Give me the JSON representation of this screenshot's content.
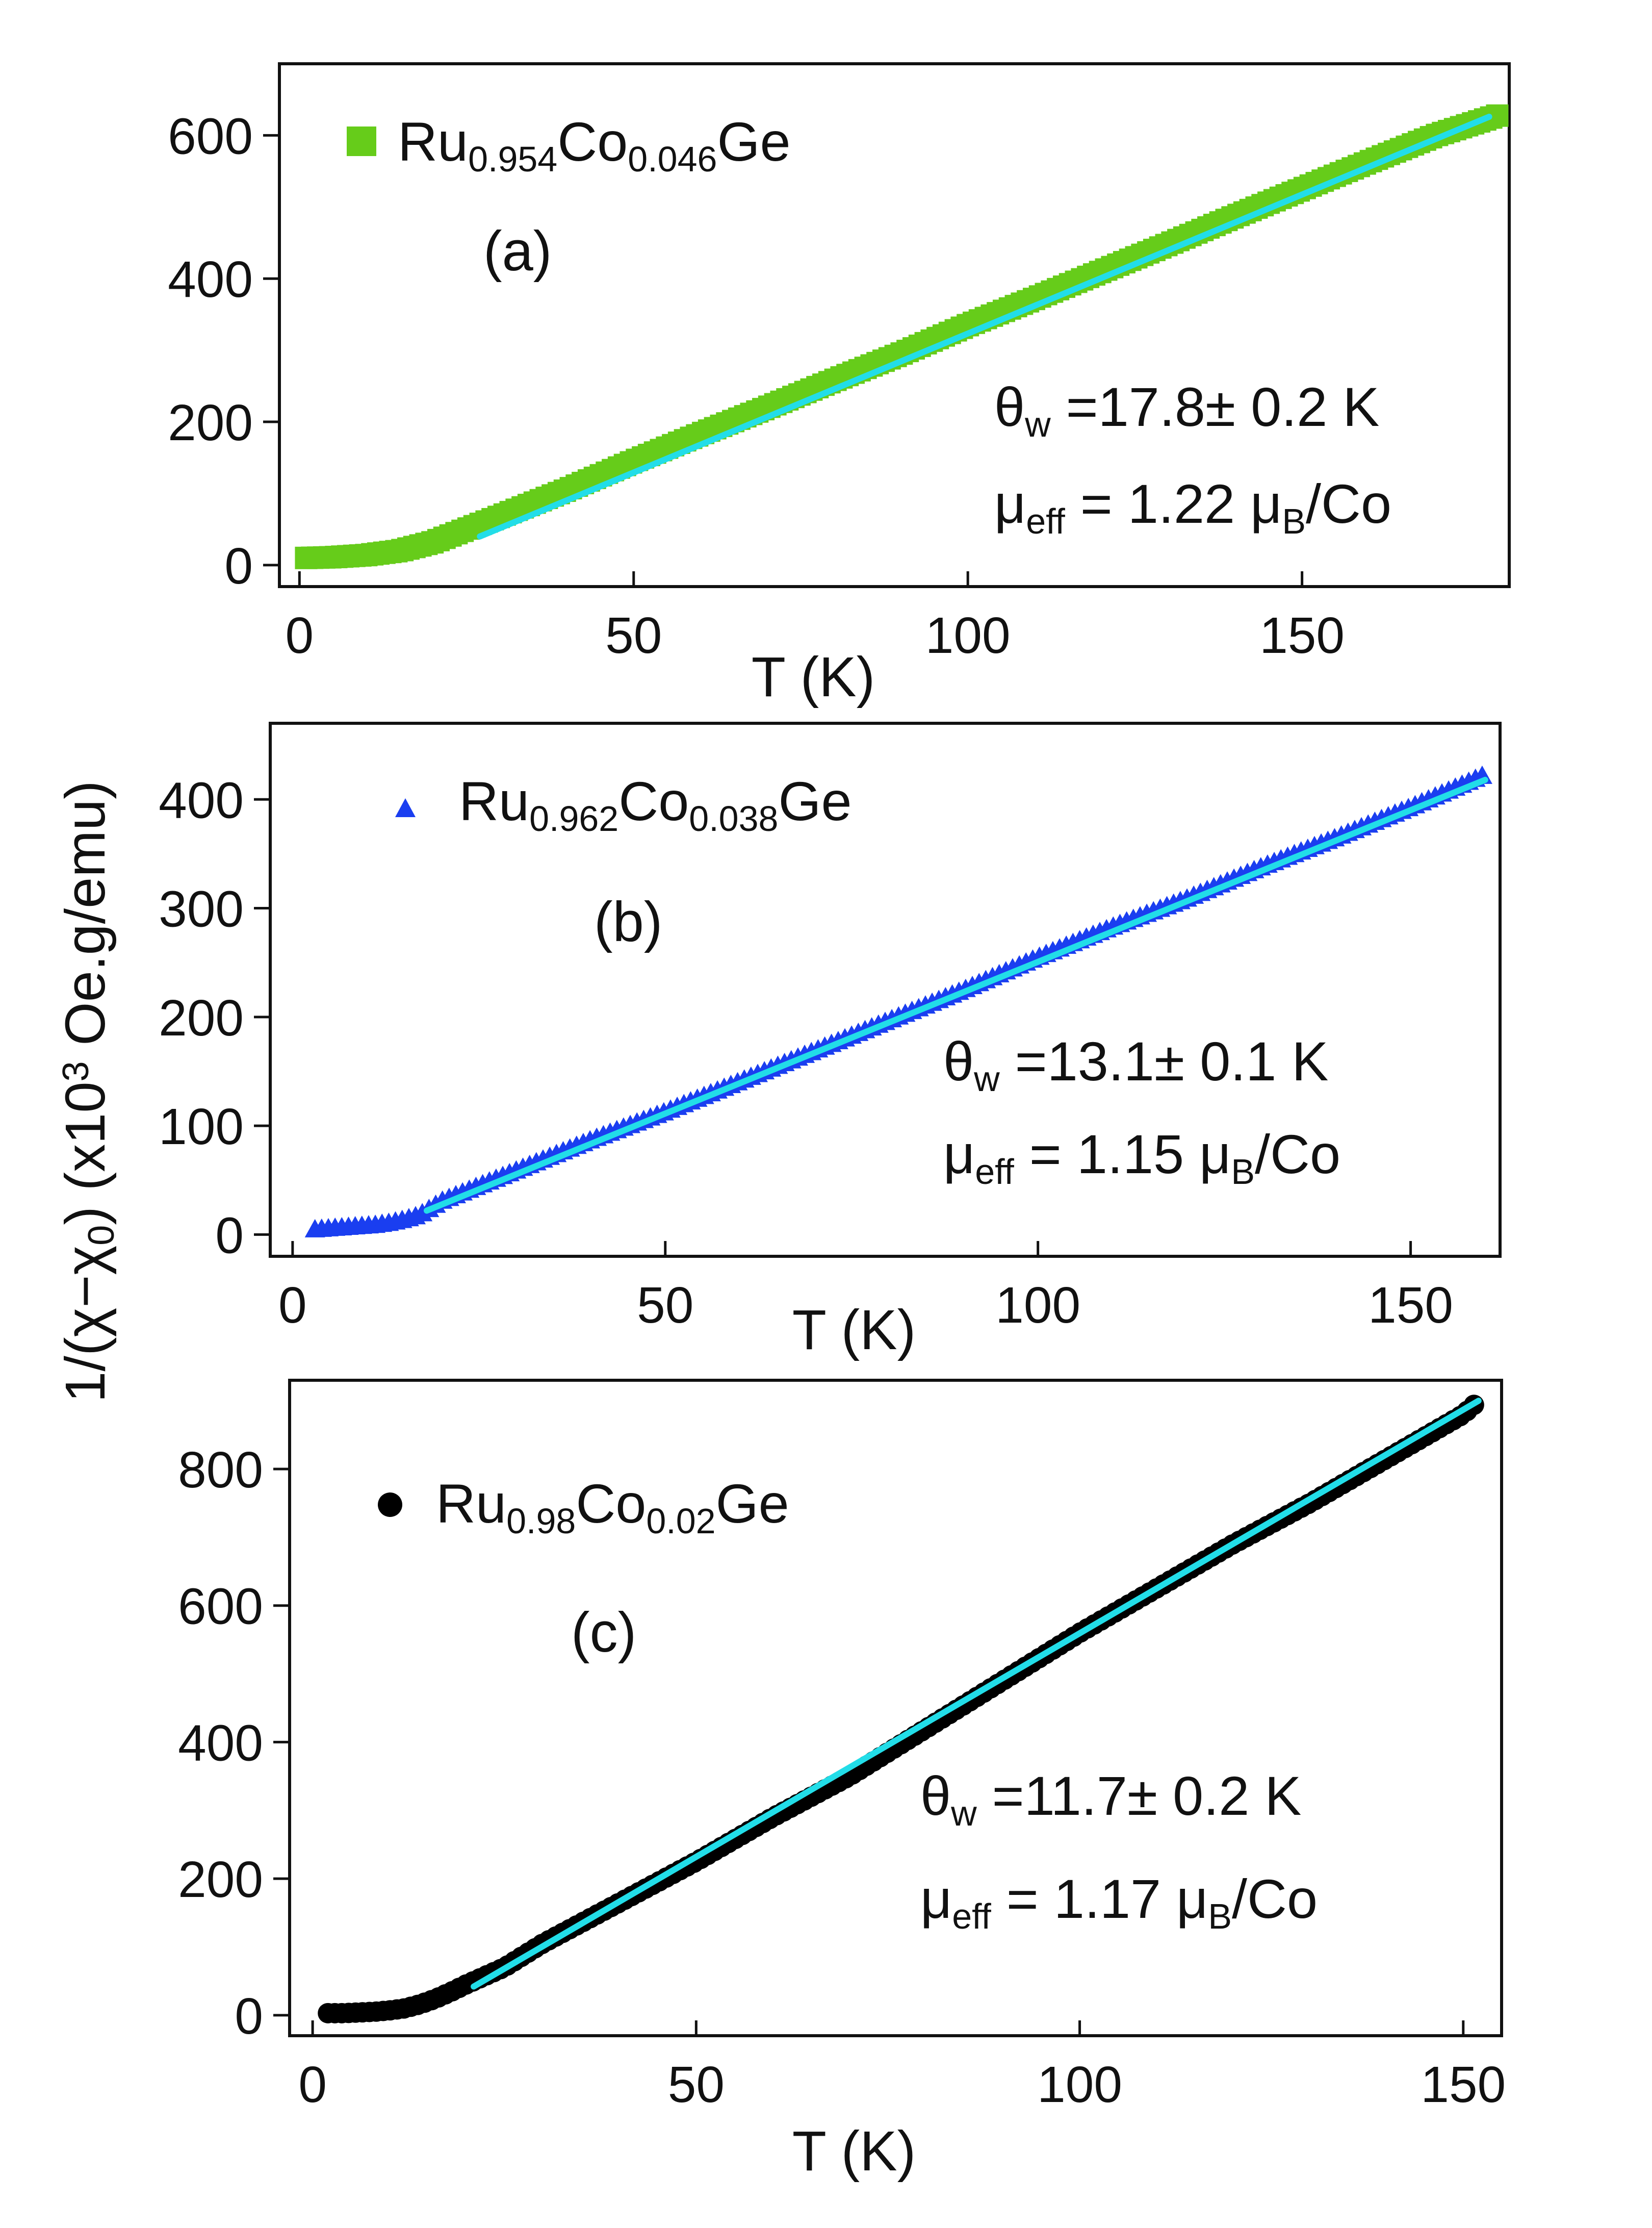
{
  "figure": {
    "ylabel_main": "1/(χ−χ",
    "ylabel_sub": "0",
    "ylabel_rest": ") (x10",
    "ylabel_sup": "3",
    "ylabel_unit": " Oe.g/emu)"
  },
  "colors": {
    "panel_a_marker": "#66cc1a",
    "panel_b_marker": "#1a3ef0",
    "panel_c_marker": "#000000",
    "fit_line": "#22dde8"
  },
  "chart_data": [
    {
      "type": "scatter",
      "panel": "(a)",
      "marker": "square",
      "legend": {
        "pre": "Ru",
        "sub1": "0.954",
        "mid": "Co",
        "sub2": "0.046",
        "post": "Ge"
      },
      "xlabel": "T (K)",
      "xlim": [
        -3,
        181
      ],
      "ylim": [
        -30,
        700
      ],
      "xticks": [
        0,
        50,
        100,
        150
      ],
      "yticks": [
        0,
        200,
        400,
        600
      ],
      "annotation": {
        "theta_sym": "θ",
        "theta_sub": "w",
        "theta_val": " =17.8± 0.2 K",
        "mu_sym": "μ",
        "mu_sub": "eff",
        "mu_mid": " = 1.22 μ",
        "mu_sub2": "B",
        "mu_post": "/Co"
      },
      "series": [
        {
          "name": "data",
          "x": [
            1,
            5,
            10,
            15,
            20,
            25,
            30,
            40,
            50,
            60,
            70,
            80,
            90,
            100,
            110,
            120,
            130,
            140,
            150,
            160,
            170,
            180
          ],
          "y": [
            10,
            11,
            14,
            20,
            32,
            50,
            68,
            105,
            145,
            183,
            220,
            258,
            295,
            335,
            372,
            410,
            448,
            487,
            525,
            563,
            600,
            630
          ]
        },
        {
          "name": "fit",
          "x": [
            27,
            178
          ],
          "y": [
            40,
            626
          ]
        }
      ]
    },
    {
      "type": "scatter",
      "panel": "(b)",
      "marker": "triangle",
      "legend": {
        "pre": "Ru",
        "sub1": "0.962",
        "mid": "Co",
        "sub2": "0.038",
        "post": "Ge"
      },
      "xlabel": "T (K)",
      "xlim": [
        -3,
        162
      ],
      "ylim": [
        -20,
        470
      ],
      "xticks": [
        0,
        50,
        100,
        150
      ],
      "yticks": [
        0,
        100,
        200,
        300,
        400
      ],
      "annotation": {
        "theta_sym": "θ",
        "theta_sub": "w",
        "theta_val": " =13.1± 0.1 K",
        "mu_sym": "μ",
        "mu_sub": "eff",
        "mu_mid": " = 1.15 μ",
        "mu_sub2": "B",
        "mu_post": "/Co"
      },
      "series": [
        {
          "name": "data",
          "x": [
            3,
            5,
            7,
            9,
            11,
            13,
            15,
            17,
            20,
            30,
            40,
            50,
            60,
            70,
            80,
            90,
            100,
            110,
            120,
            130,
            140,
            150,
            160
          ],
          "y": [
            4,
            5,
            6,
            7,
            8,
            10,
            13,
            17,
            30,
            58,
            86,
            112,
            140,
            168,
            196,
            224,
            254,
            282,
            308,
            337,
            364,
            392,
            422
          ]
        },
        {
          "name": "fit",
          "x": [
            18,
            160
          ],
          "y": [
            22,
            418
          ]
        }
      ]
    },
    {
      "type": "scatter",
      "panel": "(c)",
      "marker": "circle",
      "legend": {
        "pre": "Ru",
        "sub1": "0.98",
        "mid": "Co",
        "sub2": "0.02",
        "post": "Ge"
      },
      "xlabel": "T (K)",
      "xlim": [
        -3,
        155
      ],
      "ylim": [
        -30,
        930
      ],
      "xticks": [
        0,
        50,
        100,
        150
      ],
      "yticks": [
        0,
        200,
        400,
        600,
        800
      ],
      "annotation": {
        "theta_sym": "θ",
        "theta_sub": "w",
        "theta_val": " =11.7± 0.2 K",
        "mu_sym": "μ",
        "mu_sub": "eff",
        "mu_mid": " = 1.17 μ",
        "mu_sub2": "B",
        "mu_post": "/Co"
      },
      "series": [
        {
          "name": "data",
          "x": [
            2,
            4,
            6,
            8,
            10,
            12,
            14,
            16,
            18,
            20,
            25,
            30,
            40,
            50,
            60,
            70,
            80,
            90,
            100,
            110,
            120,
            130,
            140,
            150,
            152
          ],
          "y": [
            3,
            3,
            4,
            5,
            7,
            10,
            16,
            24,
            34,
            45,
            70,
            105,
            165,
            225,
            290,
            350,
            420,
            490,
            560,
            625,
            690,
            750,
            815,
            880,
            900
          ]
        },
        {
          "name": "fit",
          "x": [
            21,
            152
          ],
          "y": [
            42,
            900
          ]
        }
      ]
    }
  ]
}
